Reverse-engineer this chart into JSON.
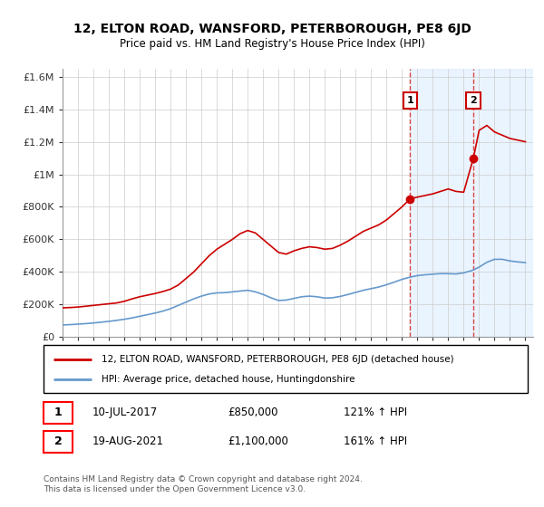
{
  "title": "12, ELTON ROAD, WANSFORD, PETERBOROUGH, PE8 6JD",
  "subtitle": "Price paid vs. HM Land Registry's House Price Index (HPI)",
  "legend_line1": "12, ELTON ROAD, WANSFORD, PETERBOROUGH, PE8 6JD (detached house)",
  "legend_line2": "HPI: Average price, detached house, Huntingdonshire",
  "footnote": "Contains HM Land Registry data © Crown copyright and database right 2024.\nThis data is licensed under the Open Government Licence v3.0.",
  "annotation1_label": "1",
  "annotation1_date": "10-JUL-2017",
  "annotation1_price": "£850,000",
  "annotation1_hpi": "121% ↑ HPI",
  "annotation1_year": 2017.53,
  "annotation1_value": 850000,
  "annotation2_label": "2",
  "annotation2_date": "19-AUG-2021",
  "annotation2_price": "£1,100,000",
  "annotation2_hpi": "161% ↑ HPI",
  "annotation2_year": 2021.63,
  "annotation2_value": 1100000,
  "property_color": "#cc0000",
  "hpi_color": "#6699cc",
  "background_color": "#ffffff",
  "grid_color": "#cccccc",
  "shade_color": "#ddeeff",
  "vline_color": "#dd4444",
  "ylim": [
    0,
    1650000
  ],
  "xlim_start": 1995.0,
  "xlim_end": 2025.5,
  "property_x": [
    1995.0,
    1995.5,
    1996.0,
    1996.5,
    1997.0,
    1997.5,
    1998.0,
    1998.5,
    1999.0,
    1999.5,
    2000.0,
    2000.5,
    2001.0,
    2001.5,
    2002.0,
    2002.5,
    2003.0,
    2003.5,
    2004.0,
    2004.5,
    2005.0,
    2005.5,
    2006.0,
    2006.5,
    2007.0,
    2007.5,
    2008.0,
    2008.5,
    2009.0,
    2009.5,
    2010.0,
    2010.5,
    2011.0,
    2011.5,
    2012.0,
    2012.5,
    2013.0,
    2013.5,
    2014.0,
    2014.5,
    2015.0,
    2015.5,
    2016.0,
    2016.5,
    2017.0,
    2017.53,
    2018.0,
    2018.5,
    2019.0,
    2019.5,
    2020.0,
    2020.5,
    2021.0,
    2021.63,
    2022.0,
    2022.5,
    2023.0,
    2023.5,
    2024.0,
    2024.5,
    2025.0
  ],
  "property_y": [
    180000,
    182000,
    185000,
    190000,
    195000,
    200000,
    205000,
    210000,
    220000,
    235000,
    248000,
    258000,
    268000,
    280000,
    295000,
    320000,
    360000,
    400000,
    450000,
    500000,
    540000,
    570000,
    600000,
    635000,
    655000,
    640000,
    600000,
    560000,
    520000,
    510000,
    530000,
    545000,
    555000,
    550000,
    540000,
    545000,
    565000,
    590000,
    620000,
    650000,
    670000,
    690000,
    720000,
    760000,
    800000,
    850000,
    860000,
    870000,
    880000,
    895000,
    910000,
    895000,
    890000,
    1100000,
    1270000,
    1300000,
    1260000,
    1240000,
    1220000,
    1210000,
    1200000
  ],
  "hpi_x": [
    1995.0,
    1995.5,
    1996.0,
    1996.5,
    1997.0,
    1997.5,
    1998.0,
    1998.5,
    1999.0,
    1999.5,
    2000.0,
    2000.5,
    2001.0,
    2001.5,
    2002.0,
    2002.5,
    2003.0,
    2003.5,
    2004.0,
    2004.5,
    2005.0,
    2005.5,
    2006.0,
    2006.5,
    2007.0,
    2007.5,
    2008.0,
    2008.5,
    2009.0,
    2009.5,
    2010.0,
    2010.5,
    2011.0,
    2011.5,
    2012.0,
    2012.5,
    2013.0,
    2013.5,
    2014.0,
    2014.5,
    2015.0,
    2015.5,
    2016.0,
    2016.5,
    2017.0,
    2017.5,
    2018.0,
    2018.5,
    2019.0,
    2019.5,
    2020.0,
    2020.5,
    2021.0,
    2021.5,
    2022.0,
    2022.5,
    2023.0,
    2023.5,
    2024.0,
    2024.5,
    2025.0
  ],
  "hpi_y": [
    75000,
    77000,
    80000,
    83000,
    87000,
    92000,
    97000,
    103000,
    110000,
    118000,
    128000,
    138000,
    148000,
    160000,
    175000,
    195000,
    215000,
    235000,
    252000,
    265000,
    272000,
    273000,
    278000,
    283000,
    288000,
    278000,
    262000,
    242000,
    225000,
    228000,
    238000,
    248000,
    252000,
    248000,
    240000,
    242000,
    250000,
    262000,
    275000,
    288000,
    298000,
    308000,
    322000,
    338000,
    355000,
    368000,
    378000,
    383000,
    387000,
    390000,
    390000,
    388000,
    395000,
    408000,
    430000,
    460000,
    478000,
    478000,
    468000,
    462000,
    458000
  ],
  "shaded_region_start": 2017.53,
  "shaded_region_end": 2025.5,
  "yticks": [
    0,
    200000,
    400000,
    600000,
    800000,
    1000000,
    1200000,
    1400000,
    1600000
  ],
  "ytick_labels": [
    "£0",
    "£200K",
    "£400K",
    "£600K",
    "£800K",
    "£1M",
    "£1.2M",
    "£1.4M",
    "£1.6M"
  ],
  "xticks": [
    1995,
    1996,
    1997,
    1998,
    1999,
    2000,
    2001,
    2002,
    2003,
    2004,
    2005,
    2006,
    2007,
    2008,
    2009,
    2010,
    2011,
    2012,
    2013,
    2014,
    2015,
    2016,
    2017,
    2018,
    2019,
    2020,
    2021,
    2022,
    2023,
    2024,
    2025
  ]
}
